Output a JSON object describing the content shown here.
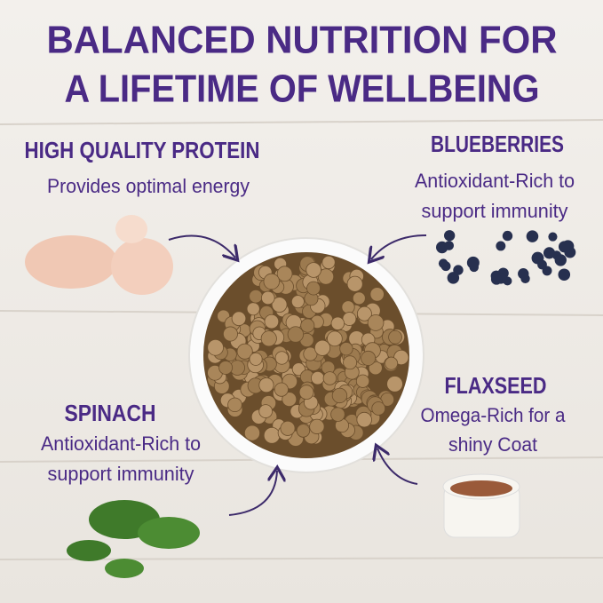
{
  "title": [
    "BALANCED NUTRITION FOR",
    "A LIFETIME OF WELLBEING"
  ],
  "callouts": [
    {
      "heading": "HIGH QUALITY PROTEIN",
      "description": [
        "Provides optimal energy"
      ]
    },
    {
      "heading": "BLUEBERRIES",
      "description": [
        "Antioxidant-Rich to",
        "support immunity"
      ]
    },
    {
      "heading": "SPINACH",
      "description": [
        "Antioxidant-Rich to",
        "support immunity"
      ]
    },
    {
      "heading": "FLAXSEED",
      "description": [
        "Omega-Rich for a",
        "shiny Coat"
      ]
    }
  ]
}
